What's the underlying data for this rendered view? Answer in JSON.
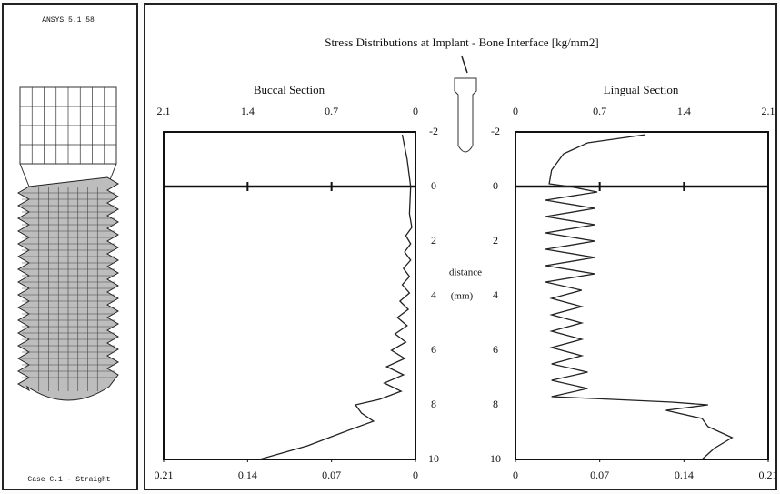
{
  "model": {
    "label": "ANSYS 5.1 58",
    "caption": "Case C.1 - Straight"
  },
  "header": {
    "title": "Stress Distributions at Implant - Bone Interface [kg/mm2]",
    "axis_label": "distance",
    "axis_unit": "(mm)"
  },
  "chart_data": [
    {
      "type": "line",
      "orientation": "vertical",
      "title": "Buccal Section",
      "x": [
        -1.9,
        -1,
        0,
        1,
        1.5,
        1.8,
        2.1,
        2.4,
        2.7,
        3.0,
        3.3,
        3.6,
        3.9,
        4.2,
        4.5,
        4.8,
        5.1,
        5.4,
        5.7,
        6.0,
        6.3,
        6.6,
        6.9,
        7.2,
        7.5,
        7.8,
        8.0,
        8.3,
        8.6,
        9.0,
        9.5,
        10.0
      ],
      "series": [
        {
          "color": "#222222",
          "values": [
            0.011,
            0.007,
            0.004,
            0.005,
            0.003,
            0.008,
            0.004,
            0.009,
            0.004,
            0.01,
            0.005,
            0.011,
            0.005,
            0.013,
            0.006,
            0.015,
            0.007,
            0.017,
            0.008,
            0.02,
            0.009,
            0.024,
            0.01,
            0.026,
            0.012,
            0.03,
            0.05,
            0.045,
            0.035,
            0.06,
            0.09,
            0.13
          ]
        }
      ],
      "xlim": [
        -2,
        10
      ],
      "xticks": [
        -2,
        0,
        2,
        4,
        6,
        8,
        10
      ],
      "ylim": [
        0.21,
        0
      ],
      "yticks": [
        0.21,
        0.14,
        0.07,
        0
      ],
      "y2lim": [
        2.1,
        0
      ],
      "y2ticks": [
        2.1,
        1.4,
        0.7,
        0
      ],
      "zero_line": true
    },
    {
      "type": "line",
      "orientation": "vertical",
      "title": "Lingual Section",
      "x": [
        -1.9,
        -1.6,
        -1.2,
        -0.6,
        -0.1,
        0.0,
        0.2,
        0.5,
        0.8,
        1.1,
        1.4,
        1.7,
        2.0,
        2.3,
        2.6,
        2.9,
        3.2,
        3.5,
        3.8,
        4.1,
        4.4,
        4.7,
        5.0,
        5.3,
        5.6,
        5.9,
        6.2,
        6.5,
        6.8,
        7.1,
        7.4,
        7.7,
        7.9,
        8.0,
        8.2,
        8.5,
        8.8,
        9.2,
        9.6,
        10.0
      ],
      "series": [
        {
          "color": "#222222",
          "values": [
            0.108,
            0.06,
            0.04,
            0.03,
            0.028,
            0.045,
            0.068,
            0.025,
            0.066,
            0.025,
            0.066,
            0.025,
            0.066,
            0.025,
            0.066,
            0.025,
            0.066,
            0.025,
            0.055,
            0.03,
            0.055,
            0.03,
            0.055,
            0.03,
            0.055,
            0.03,
            0.055,
            0.03,
            0.06,
            0.03,
            0.06,
            0.03,
            0.13,
            0.16,
            0.125,
            0.155,
            0.16,
            0.18,
            0.165,
            0.155
          ]
        }
      ],
      "xlim": [
        -2,
        10
      ],
      "xticks": [
        -2,
        0,
        2,
        4,
        6,
        8,
        10
      ],
      "ylim": [
        0,
        0.21
      ],
      "yticks": [
        0,
        0.07,
        0.14,
        0.21
      ],
      "y2lim": [
        0,
        2.1
      ],
      "y2ticks": [
        0,
        0.7,
        1.4,
        2.1
      ],
      "zero_line": true
    }
  ]
}
